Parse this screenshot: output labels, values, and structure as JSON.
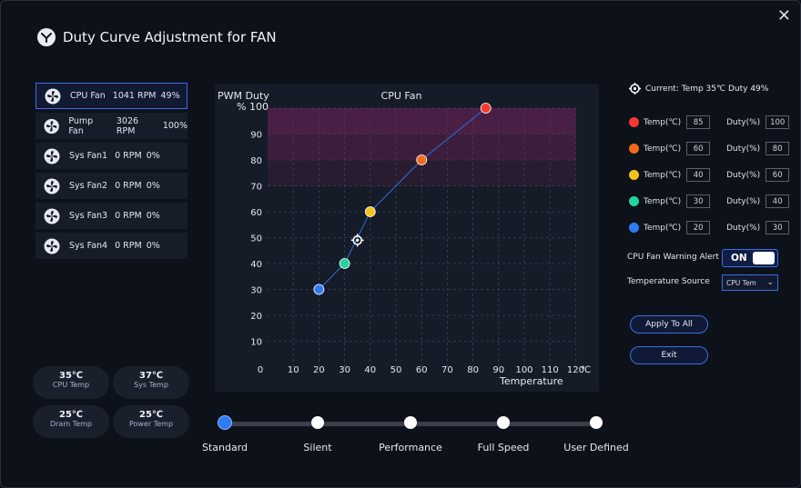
{
  "window": {
    "title": "Duty Curve Adjustment for FAN"
  },
  "fans": [
    {
      "name": "CPU Fan",
      "rpm": "1041 RPM",
      "pct": "49%"
    },
    {
      "name": "Pump Fan",
      "rpm": "3026 RPM",
      "pct": "100%"
    },
    {
      "name": "Sys Fan1",
      "rpm": "0 RPM",
      "pct": "0%"
    },
    {
      "name": "Sys Fan2",
      "rpm": "0 RPM",
      "pct": "0%"
    },
    {
      "name": "Sys Fan3",
      "rpm": "0 RPM",
      "pct": "0%"
    },
    {
      "name": "Sys Fan4",
      "rpm": "0 RPM",
      "pct": "0%"
    }
  ],
  "temps": [
    {
      "value": "35℃",
      "label": "CPU Temp"
    },
    {
      "value": "37℃",
      "label": "Sys Temp"
    },
    {
      "value": "25℃",
      "label": "Dram Temp"
    },
    {
      "value": "25℃",
      "label": "Power Temp"
    }
  ],
  "chart_data": {
    "type": "line",
    "title": "CPU Fan",
    "ylabel": "PWM Duty",
    "ylabel2": "% 100",
    "xlabel": "Temperature",
    "x_unit": "℃",
    "xlim": [
      0,
      120
    ],
    "ylim": [
      0,
      100
    ],
    "x_ticks": [
      "0",
      "10",
      "20",
      "30",
      "40",
      "50",
      "60",
      "70",
      "80",
      "90",
      "100",
      "110",
      "120"
    ],
    "y_ticks": [
      "10",
      "20",
      "30",
      "40",
      "50",
      "60",
      "70",
      "80",
      "90"
    ],
    "points": [
      {
        "x": 20,
        "y": 30,
        "color": "#2f7cf2"
      },
      {
        "x": 30,
        "y": 40,
        "color": "#22d4a0"
      },
      {
        "x": 40,
        "y": 60,
        "color": "#f4c21b"
      },
      {
        "x": 60,
        "y": 80,
        "color": "#f26a1b"
      },
      {
        "x": 85,
        "y": 100,
        "color": "#f23a2e"
      }
    ],
    "current": {
      "x": 35,
      "y": 49
    },
    "zones": [
      {
        "y0": 90,
        "y1": 100,
        "color": "#4a1f45"
      },
      {
        "y0": 80,
        "y1": 90,
        "color": "#3d1d3c"
      },
      {
        "y0": 70,
        "y1": 80,
        "color": "#2a1c30"
      }
    ]
  },
  "current": {
    "text": "Current: Temp 35℃  Duty 49%"
  },
  "curve_rows": [
    {
      "color": "#f23a2e",
      "temp_label": "Temp(℃)",
      "temp": "85",
      "duty_label": "Duty(%)",
      "duty": "100"
    },
    {
      "color": "#f26a1b",
      "temp_label": "Temp(℃)",
      "temp": "60",
      "duty_label": "Duty(%)",
      "duty": "80"
    },
    {
      "color": "#f4c21b",
      "temp_label": "Temp(℃)",
      "temp": "40",
      "duty_label": "Duty(%)",
      "duty": "60"
    },
    {
      "color": "#22d4a0",
      "temp_label": "Temp(℃)",
      "temp": "30",
      "duty_label": "Duty(%)",
      "duty": "40"
    },
    {
      "color": "#2f7cf2",
      "temp_label": "Temp(℃)",
      "temp": "20",
      "duty_label": "Duty(%)",
      "duty": "30"
    }
  ],
  "settings": {
    "warning_label": "CPU Fan Warning Alert",
    "warning_value": "ON",
    "source_label": "Temperature Source",
    "source_value": "CPU Tem"
  },
  "buttons": {
    "apply": "Apply To All",
    "exit": "Exit"
  },
  "presets": [
    "Standard",
    "Silent",
    "Performance",
    "Full Speed",
    "User Defined"
  ],
  "selected_preset": "Standard"
}
